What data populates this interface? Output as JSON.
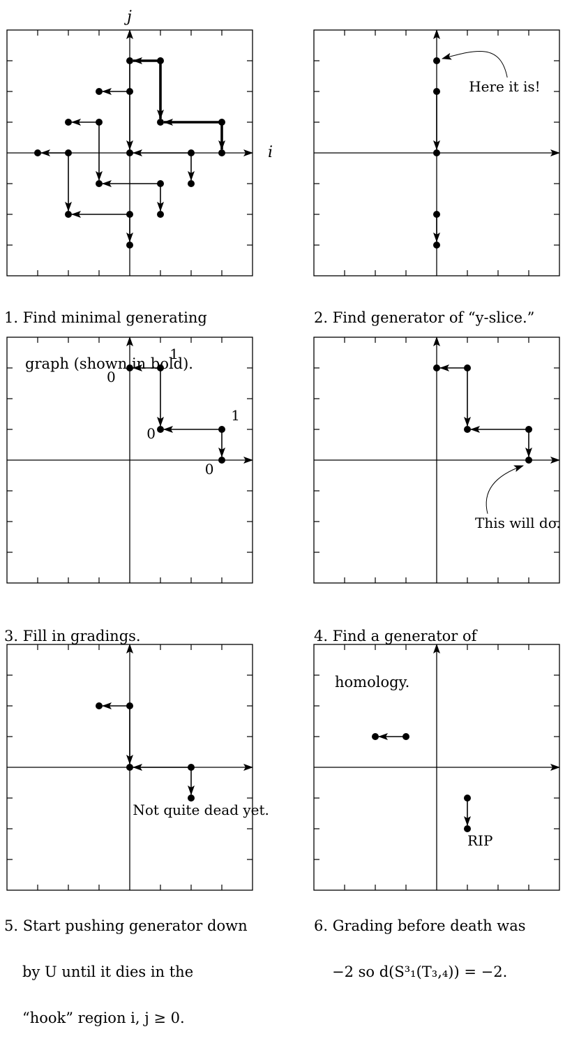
{
  "axis_labels": {
    "i": "i",
    "j": "j"
  },
  "panels": [
    {
      "id": "p1",
      "caption": [
        "1. Find minimal generating",
        "graph (shown in bold)."
      ],
      "points": [
        [
          0,
          3
        ],
        [
          1,
          3
        ],
        [
          -1,
          2
        ],
        [
          0,
          2
        ],
        [
          -2,
          1
        ],
        [
          -1,
          1
        ],
        [
          1,
          1
        ],
        [
          3,
          1
        ],
        [
          -3,
          0
        ],
        [
          -2,
          0
        ],
        [
          0,
          0
        ],
        [
          2,
          0
        ],
        [
          3,
          0
        ],
        [
          -1,
          -1
        ],
        [
          1,
          -1
        ],
        [
          2,
          -1
        ],
        [
          -2,
          -2
        ],
        [
          0,
          -2
        ],
        [
          1,
          -2
        ],
        [
          0,
          -3
        ]
      ],
      "arrows": [
        {
          "from": [
            1,
            3
          ],
          "to": [
            0,
            3
          ],
          "bold": true
        },
        {
          "from": [
            1,
            3
          ],
          "to": [
            1,
            1
          ],
          "bold": true
        },
        {
          "from": [
            3,
            1
          ],
          "to": [
            1,
            1
          ],
          "bold": true
        },
        {
          "from": [
            3,
            1
          ],
          "to": [
            3,
            0
          ],
          "bold": true
        },
        {
          "from": [
            0,
            2
          ],
          "to": [
            -1,
            2
          ],
          "bold": false
        },
        {
          "from": [
            -1,
            1
          ],
          "to": [
            -2,
            1
          ],
          "bold": false
        },
        {
          "from": [
            -2,
            0
          ],
          "to": [
            -3,
            0
          ],
          "bold": false
        },
        {
          "from": [
            0,
            3
          ],
          "to": [
            0,
            0
          ],
          "bold": false
        },
        {
          "from": [
            2,
            0
          ],
          "to": [
            0,
            0
          ],
          "bold": false
        },
        {
          "from": [
            -1,
            1
          ],
          "to": [
            -1,
            -1
          ],
          "bold": false
        },
        {
          "from": [
            2,
            0
          ],
          "to": [
            2,
            -1
          ],
          "bold": false
        },
        {
          "from": [
            1,
            -1
          ],
          "to": [
            -1,
            -1
          ],
          "bold": false
        },
        {
          "from": [
            -2,
            0
          ],
          "to": [
            -2,
            -2
          ],
          "bold": false
        },
        {
          "from": [
            1,
            -1
          ],
          "to": [
            1,
            -2
          ],
          "bold": false
        },
        {
          "from": [
            0,
            -2
          ],
          "to": [
            -2,
            -2
          ],
          "bold": false
        },
        {
          "from": [
            0,
            -2
          ],
          "to": [
            0,
            -3
          ],
          "bold": false
        }
      ],
      "labels": [],
      "annotations": []
    },
    {
      "id": "p2",
      "caption": [
        "2. Find generator of “y-slice.”"
      ],
      "points": [
        [
          0,
          3
        ],
        [
          0,
          2
        ],
        [
          0,
          0
        ],
        [
          0,
          -2
        ],
        [
          0,
          -3
        ]
      ],
      "arrows": [
        {
          "from": [
            0,
            2
          ],
          "to": [
            0,
            0
          ],
          "bold": false
        },
        {
          "from": [
            0,
            -2
          ],
          "to": [
            0,
            -3
          ],
          "bold": false
        }
      ],
      "labels": [],
      "annotations": [
        {
          "text": "Here it is!",
          "text_at": [
            1.05,
            2.0
          ],
          "curve_to": [
            0,
            3
          ],
          "style": "upper"
        }
      ]
    },
    {
      "id": "p3",
      "caption": [
        "3. Fill in gradings."
      ],
      "points": [
        [
          0,
          3
        ],
        [
          1,
          3
        ],
        [
          1,
          1
        ],
        [
          3,
          1
        ],
        [
          3,
          0
        ]
      ],
      "arrows": [
        {
          "from": [
            1,
            3
          ],
          "to": [
            0,
            3
          ],
          "bold": false
        },
        {
          "from": [
            1,
            3
          ],
          "to": [
            1,
            1
          ],
          "bold": false
        },
        {
          "from": [
            3,
            1
          ],
          "to": [
            1,
            1
          ],
          "bold": false
        },
        {
          "from": [
            3,
            1
          ],
          "to": [
            3,
            0
          ],
          "bold": false
        }
      ],
      "labels": [
        {
          "text": "0",
          "at": [
            -0.75,
            2.55
          ]
        },
        {
          "text": "1",
          "at": [
            1.3,
            3.3
          ]
        },
        {
          "text": "0",
          "at": [
            0.55,
            0.7
          ]
        },
        {
          "text": "1",
          "at": [
            3.3,
            1.3
          ]
        },
        {
          "text": "0",
          "at": [
            2.45,
            -0.45
          ]
        }
      ],
      "annotations": []
    },
    {
      "id": "p4",
      "caption": [
        "4. Find a generator of",
        "homology."
      ],
      "points": [
        [
          0,
          3
        ],
        [
          1,
          3
        ],
        [
          1,
          1
        ],
        [
          3,
          1
        ],
        [
          3,
          0
        ]
      ],
      "arrows": [
        {
          "from": [
            1,
            3
          ],
          "to": [
            0,
            3
          ],
          "bold": false
        },
        {
          "from": [
            1,
            3
          ],
          "to": [
            1,
            1
          ],
          "bold": false
        },
        {
          "from": [
            3,
            1
          ],
          "to": [
            1,
            1
          ],
          "bold": false
        },
        {
          "from": [
            3,
            1
          ],
          "to": [
            3,
            0
          ],
          "bold": false
        }
      ],
      "labels": [],
      "annotations": [
        {
          "text": "This will do.",
          "text_at": [
            1.25,
            -2.2
          ],
          "curve_to": [
            3,
            0
          ],
          "style": "lower"
        }
      ]
    },
    {
      "id": "p5",
      "caption": [
        "5. Start pushing generator down",
        "by U until it dies in the",
        "“hook” region i, j ≥ 0."
      ],
      "points": [
        [
          -1,
          2
        ],
        [
          0,
          2
        ],
        [
          0,
          0
        ],
        [
          2,
          0
        ],
        [
          2,
          -1
        ]
      ],
      "arrows": [
        {
          "from": [
            0,
            2
          ],
          "to": [
            -1,
            2
          ],
          "bold": false
        },
        {
          "from": [
            0,
            2
          ],
          "to": [
            0,
            0
          ],
          "bold": false
        },
        {
          "from": [
            2,
            0
          ],
          "to": [
            0,
            0
          ],
          "bold": false
        },
        {
          "from": [
            2,
            0
          ],
          "to": [
            2,
            -1
          ],
          "bold": false
        }
      ],
      "labels": [],
      "annotations": [
        {
          "text": "Not quite dead yet.",
          "text_at": [
            0.1,
            -1.55
          ],
          "style": "none"
        }
      ]
    },
    {
      "id": "p6",
      "caption": [
        "6. Grading before death was",
        "−2 so d(S³₁(T₃,₄)) = −2."
      ],
      "points": [
        [
          -2,
          1
        ],
        [
          -1,
          1
        ],
        [
          1,
          -1
        ],
        [
          1,
          -2
        ]
      ],
      "arrows": [
        {
          "from": [
            -1,
            1
          ],
          "to": [
            -2,
            1
          ],
          "bold": false
        },
        {
          "from": [
            1,
            -1
          ],
          "to": [
            1,
            -2
          ],
          "bold": false
        }
      ],
      "labels": [],
      "annotations": [
        {
          "text": "RIP",
          "text_at": [
            1.0,
            -2.55
          ],
          "style": "none"
        }
      ]
    }
  ]
}
